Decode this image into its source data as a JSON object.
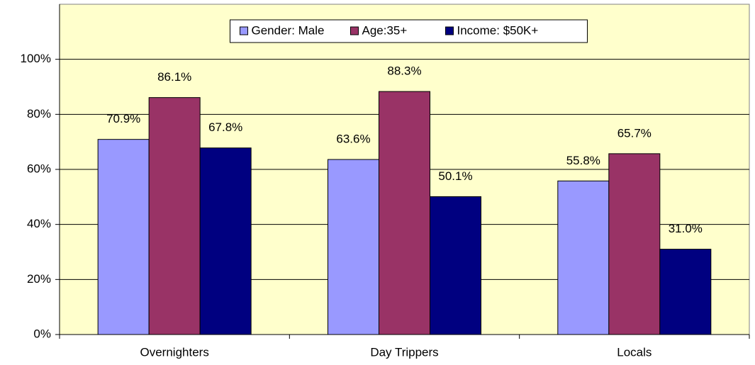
{
  "chart_data": {
    "type": "bar",
    "categories": [
      "Overnighters",
      "Day Trippers",
      "Locals"
    ],
    "series": [
      {
        "name": "Gender: Male",
        "color": "#9999ff",
        "values": [
          70.9,
          63.6,
          55.8
        ],
        "value_labels": [
          "70.9%",
          "63.6%",
          "55.8%"
        ]
      },
      {
        "name": "Age:35+",
        "color": "#993366",
        "values": [
          86.1,
          88.3,
          65.7
        ],
        "value_labels": [
          "86.1%",
          "88.3%",
          "65.7%"
        ]
      },
      {
        "name": "Income: $50K+",
        "color": "#000080",
        "values": [
          67.8,
          50.1,
          31.0
        ],
        "value_labels": [
          "67.8%",
          "50.1%",
          "31.0%"
        ]
      }
    ],
    "ylim": [
      0,
      120
    ],
    "yticks": [
      {
        "value": 0,
        "label": "0%"
      },
      {
        "value": 20,
        "label": "20%"
      },
      {
        "value": 40,
        "label": "40%"
      },
      {
        "value": 60,
        "label": "60%"
      },
      {
        "value": 80,
        "label": "80%"
      },
      {
        "value": 100,
        "label": "100%"
      }
    ],
    "grid": true,
    "legend": "top",
    "background": "#ffffcc"
  }
}
